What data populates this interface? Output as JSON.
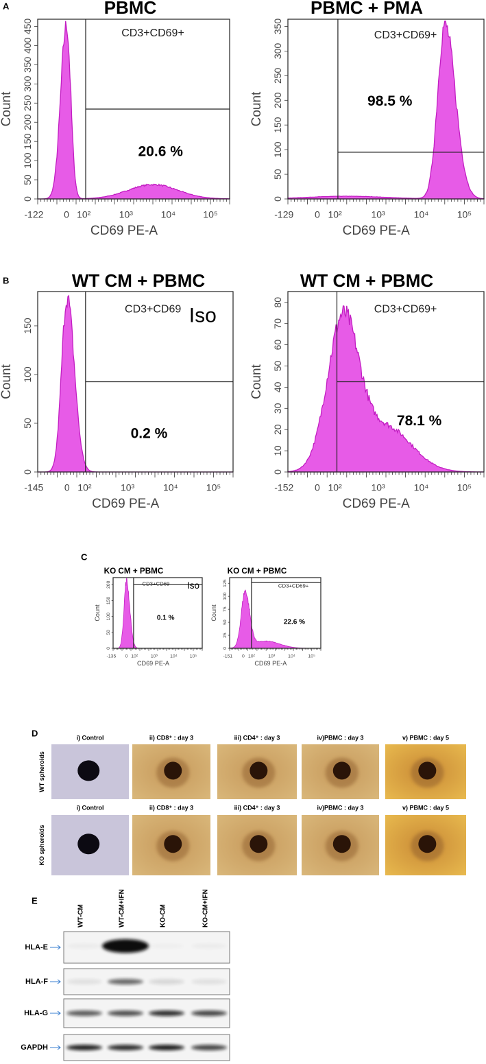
{
  "figure": {
    "panels": [
      {
        "label": "A",
        "plots": [
          {
            "title": "PBMC",
            "gate_label": "CD3+CD69+",
            "percent": "20.6 %",
            "x_label": "CD69 PE-A",
            "y_label": "Count",
            "x_ticks": [
              "-122",
              "0",
              "10²",
              "10³",
              "10⁴",
              "10⁵"
            ],
            "y_ticks": [
              "0",
              "50",
              "100",
              "150",
              "200",
              "250",
              "300",
              "350",
              "400",
              "450"
            ]
          },
          {
            "title": "PBMC + PMA",
            "gate_label": "CD3+CD69+",
            "percent": "98.5 %",
            "x_label": "CD69 PE-A",
            "y_label": "Count",
            "x_ticks": [
              "-129",
              "0",
              "10²",
              "10³",
              "10⁴",
              "10⁵"
            ],
            "y_ticks": [
              "0",
              "50",
              "100",
              "150",
              "200",
              "250",
              "300",
              "350"
            ]
          }
        ]
      },
      {
        "label": "B",
        "plots": [
          {
            "title": "WT CM + PBMC",
            "gate_label": "CD3+CD69",
            "iso": "Iso",
            "percent": "0.2 %",
            "x_label": "CD69 PE-A",
            "y_label": "Count",
            "x_ticks": [
              "-145",
              "0",
              "10²",
              "10³",
              "10⁴",
              "10⁵"
            ],
            "y_ticks": [
              "0",
              "50",
              "100",
              "150"
            ]
          },
          {
            "title": "WT CM + PBMC",
            "gate_label": "CD3+CD69+",
            "percent": "78.1 %",
            "x_label": "CD69 PE-A",
            "y_label": "Count",
            "x_ticks": [
              "-152",
              "0",
              "10²",
              "10³",
              "10⁴",
              "10⁵"
            ],
            "y_ticks": [
              "0",
              "10",
              "20",
              "30",
              "40",
              "50",
              "60",
              "70",
              "80"
            ]
          }
        ]
      },
      {
        "label": "C",
        "plots": [
          {
            "title": "KO CM + PBMC",
            "gate_label": "CD3+CD69",
            "iso": "Iso",
            "percent": "0.1 %",
            "x_label": "CD69 PE-A",
            "y_label": "Count",
            "x_ticks": [
              "-135",
              "0",
              "10²",
              "10³",
              "10⁴",
              "10⁵"
            ],
            "y_ticks": [
              "0",
              "50",
              "100",
              "150",
              "200"
            ]
          },
          {
            "title": "KO CM + PBMC",
            "gate_label": "CD3+CD69+",
            "percent": "22.6 %",
            "x_label": "CD69 PE-A",
            "y_label": "Count",
            "x_ticks": [
              "-151",
              "0",
              "10²",
              "10³",
              "10⁴",
              "10⁵"
            ],
            "y_ticks": [
              "0",
              "25",
              "50",
              "75",
              "100",
              "125"
            ]
          }
        ]
      },
      {
        "label": "D",
        "rows": [
          {
            "label": "WT spheroids",
            "titles": [
              "i) Control",
              "ii) CD8⁺ : day 3",
              "iii) CD4⁺ : day 3",
              "iv)PBMC : day 3",
              "v) PBMC : day 5"
            ]
          },
          {
            "label": "KO spheroids",
            "titles": [
              "i) Control",
              "ii) CD8⁺ : day 3",
              "iii) CD4⁺ : day 3",
              "iv)PBMC : day 3",
              "v) PBMC : day 5"
            ]
          }
        ]
      },
      {
        "label": "E",
        "columns": [
          "WT-CM",
          "WT-CM+IFN",
          "KO-CM",
          "KO-CM+IFN"
        ],
        "rows": [
          "HLA-E",
          "HLA-F",
          "HLA-G",
          "GAPDH"
        ]
      }
    ]
  }
}
